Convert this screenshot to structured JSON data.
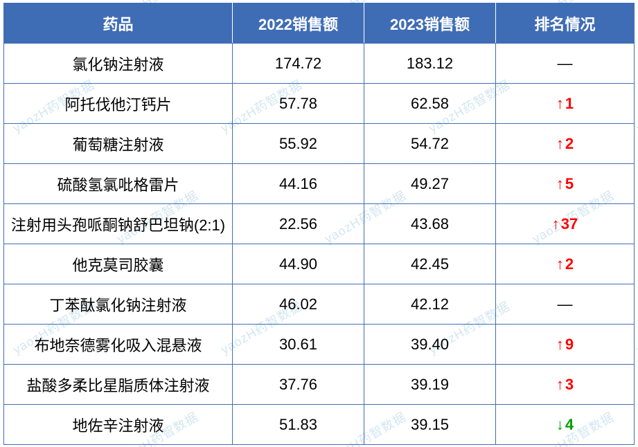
{
  "watermark_text": "yaozH药智数据",
  "watermark_color": "#7fb8d6",
  "table": {
    "header_bg": "#3f6db5",
    "header_fg": "#ffffff",
    "border_color": "#3f6db5",
    "cell_fg": "#000000",
    "up_color": "#ff0000",
    "down_color": "#00a000",
    "none_glyph": "—",
    "up_glyph": "↑",
    "down_glyph": "↓",
    "columns": [
      {
        "key": "drug",
        "label": "药品"
      },
      {
        "key": "s22",
        "label": "2022销售额"
      },
      {
        "key": "s23",
        "label": "2023销售额"
      },
      {
        "key": "rank",
        "label": "排名情况"
      }
    ],
    "rows": [
      {
        "drug": "氯化钠注射液",
        "s22": "174.72",
        "s23": "183.12",
        "rank_dir": "none",
        "rank_val": ""
      },
      {
        "drug": "阿托伐他汀钙片",
        "s22": "57.78",
        "s23": "62.58",
        "rank_dir": "up",
        "rank_val": "1"
      },
      {
        "drug": "葡萄糖注射液",
        "s22": "55.92",
        "s23": "54.72",
        "rank_dir": "up",
        "rank_val": "2"
      },
      {
        "drug": "硫酸氢氯吡格雷片",
        "s22": "44.16",
        "s23": "49.27",
        "rank_dir": "up",
        "rank_val": "5"
      },
      {
        "drug": "注射用头孢哌酮钠舒巴坦钠(2:1)",
        "s22": "22.56",
        "s23": "43.68",
        "rank_dir": "up",
        "rank_val": "37"
      },
      {
        "drug": "他克莫司胶囊",
        "s22": "44.90",
        "s23": "42.45",
        "rank_dir": "up",
        "rank_val": "2"
      },
      {
        "drug": "丁苯酞氯化钠注射液",
        "s22": "46.02",
        "s23": "42.12",
        "rank_dir": "none",
        "rank_val": ""
      },
      {
        "drug": "布地奈德雾化吸入混悬液",
        "s22": "30.61",
        "s23": "39.40",
        "rank_dir": "up",
        "rank_val": "9"
      },
      {
        "drug": "盐酸多柔比星脂质体注射液",
        "s22": "37.76",
        "s23": "39.19",
        "rank_dir": "up",
        "rank_val": "3"
      },
      {
        "drug": "地佐辛注射液",
        "s22": "51.83",
        "s23": "39.15",
        "rank_dir": "down",
        "rank_val": "4"
      }
    ]
  }
}
